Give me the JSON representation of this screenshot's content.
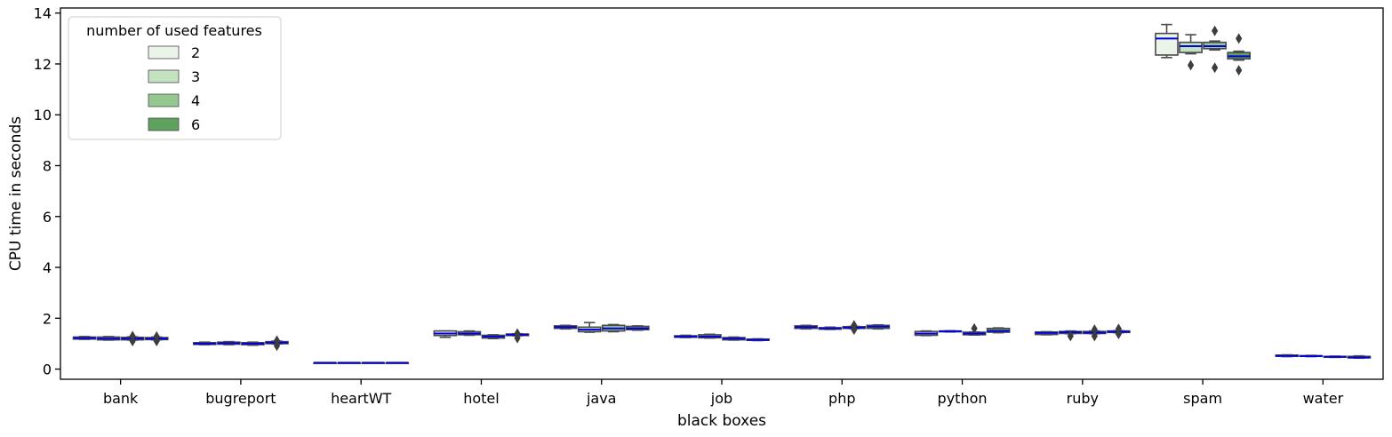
{
  "chart_data": {
    "type": "box",
    "title": "",
    "xlabel": "black boxes",
    "ylabel": "CPU time in seconds",
    "ylim": [
      -0.4,
      14.2
    ],
    "yticks": [
      0,
      2,
      4,
      6,
      8,
      10,
      12,
      14
    ],
    "categories": [
      "bank",
      "bugreport",
      "heartWT",
      "hotel",
      "java",
      "job",
      "php",
      "python",
      "ruby",
      "spam",
      "water"
    ],
    "legend": {
      "title": "number of used features",
      "placement": "top-left",
      "entries": [
        "2",
        "3",
        "4",
        "6"
      ]
    },
    "colors": {
      "series": [
        "#eaf4e8",
        "#c3e2c0",
        "#94c890",
        "#5fa15f"
      ],
      "box_edge": "#4a4a4a",
      "mean_line": "#0000dd"
    },
    "series": [
      {
        "name": "2",
        "boxes": [
          {
            "q1": 1.18,
            "median": 1.22,
            "q3": 1.26,
            "whislo": 1.17,
            "whishi": 1.28,
            "fliers": []
          },
          {
            "q1": 0.97,
            "median": 1.0,
            "q3": 1.04,
            "whislo": 0.96,
            "whishi": 1.06,
            "fliers": []
          },
          {
            "q1": 0.25,
            "median": 0.25,
            "q3": 0.25,
            "whislo": 0.25,
            "whishi": 0.25,
            "fliers": []
          },
          {
            "q1": 1.32,
            "median": 1.4,
            "q3": 1.5,
            "whislo": 1.25,
            "whishi": 1.5,
            "fliers": []
          },
          {
            "q1": 1.6,
            "median": 1.65,
            "q3": 1.7,
            "whislo": 1.58,
            "whishi": 1.72,
            "fliers": []
          },
          {
            "q1": 1.25,
            "median": 1.28,
            "q3": 1.31,
            "whislo": 1.24,
            "whishi": 1.33,
            "fliers": []
          },
          {
            "q1": 1.6,
            "median": 1.65,
            "q3": 1.7,
            "whislo": 1.58,
            "whishi": 1.72,
            "fliers": []
          },
          {
            "q1": 1.33,
            "median": 1.4,
            "q3": 1.48,
            "whislo": 1.32,
            "whishi": 1.5,
            "fliers": []
          },
          {
            "q1": 1.36,
            "median": 1.42,
            "q3": 1.46,
            "whislo": 1.35,
            "whishi": 1.47,
            "fliers": []
          },
          {
            "q1": 12.35,
            "median": 13.0,
            "q3": 13.2,
            "whislo": 12.25,
            "whishi": 13.55,
            "fliers": []
          },
          {
            "q1": 0.5,
            "median": 0.52,
            "q3": 0.55,
            "whislo": 0.49,
            "whishi": 0.56,
            "fliers": []
          }
        ]
      },
      {
        "name": "3",
        "boxes": [
          {
            "q1": 1.15,
            "median": 1.2,
            "q3": 1.26,
            "whislo": 1.14,
            "whishi": 1.28,
            "fliers": []
          },
          {
            "q1": 0.98,
            "median": 1.02,
            "q3": 1.06,
            "whislo": 0.96,
            "whishi": 1.08,
            "fliers": []
          },
          {
            "q1": 0.25,
            "median": 0.25,
            "q3": 0.25,
            "whislo": 0.25,
            "whishi": 0.25,
            "fliers": []
          },
          {
            "q1": 1.35,
            "median": 1.4,
            "q3": 1.47,
            "whislo": 1.33,
            "whishi": 1.5,
            "fliers": []
          },
          {
            "q1": 1.47,
            "median": 1.55,
            "q3": 1.65,
            "whislo": 1.45,
            "whishi": 1.83,
            "fliers": []
          },
          {
            "q1": 1.23,
            "median": 1.28,
            "q3": 1.35,
            "whislo": 1.22,
            "whishi": 1.37,
            "fliers": []
          },
          {
            "q1": 1.57,
            "median": 1.6,
            "q3": 1.63,
            "whislo": 1.56,
            "whishi": 1.65,
            "fliers": []
          },
          {
            "q1": 1.47,
            "median": 1.48,
            "q3": 1.5,
            "whislo": 1.46,
            "whishi": 1.51,
            "fliers": []
          },
          {
            "q1": 1.4,
            "median": 1.45,
            "q3": 1.48,
            "whislo": 1.39,
            "whishi": 1.5,
            "fliers": [
              1.3
            ]
          },
          {
            "q1": 12.45,
            "median": 12.7,
            "q3": 12.85,
            "whislo": 12.4,
            "whishi": 13.15,
            "fliers": [
              11.95
            ]
          },
          {
            "q1": 0.5,
            "median": 0.51,
            "q3": 0.53,
            "whislo": 0.49,
            "whishi": 0.54,
            "fliers": []
          }
        ]
      },
      {
        "name": "4",
        "boxes": [
          {
            "q1": 1.15,
            "median": 1.2,
            "q3": 1.25,
            "whislo": 1.14,
            "whishi": 1.27,
            "fliers": [
              1.1,
              1.3
            ]
          },
          {
            "q1": 0.96,
            "median": 1.0,
            "q3": 1.04,
            "whislo": 0.94,
            "whishi": 1.06,
            "fliers": []
          },
          {
            "q1": 0.25,
            "median": 0.25,
            "q3": 0.25,
            "whislo": 0.25,
            "whishi": 0.25,
            "fliers": []
          },
          {
            "q1": 1.22,
            "median": 1.28,
            "q3": 1.33,
            "whislo": 1.2,
            "whishi": 1.35,
            "fliers": []
          },
          {
            "q1": 1.5,
            "median": 1.6,
            "q3": 1.72,
            "whislo": 1.47,
            "whishi": 1.75,
            "fliers": []
          },
          {
            "q1": 1.15,
            "median": 1.2,
            "q3": 1.24,
            "whislo": 1.14,
            "whishi": 1.26,
            "fliers": []
          },
          {
            "q1": 1.6,
            "median": 1.63,
            "q3": 1.67,
            "whislo": 1.59,
            "whishi": 1.68,
            "fliers": [
              1.55,
              1.72
            ]
          },
          {
            "q1": 1.35,
            "median": 1.4,
            "q3": 1.45,
            "whislo": 1.34,
            "whishi": 1.46,
            "fliers": [
              1.6
            ]
          },
          {
            "q1": 1.4,
            "median": 1.44,
            "q3": 1.48,
            "whislo": 1.39,
            "whishi": 1.5,
            "fliers": [
              1.3,
              1.55
            ]
          },
          {
            "q1": 12.6,
            "median": 12.7,
            "q3": 12.85,
            "whislo": 12.55,
            "whishi": 12.9,
            "fliers": [
              11.85,
              13.3
            ]
          },
          {
            "q1": 0.47,
            "median": 0.48,
            "q3": 0.5,
            "whislo": 0.46,
            "whishi": 0.51,
            "fliers": []
          }
        ]
      },
      {
        "name": "6",
        "boxes": [
          {
            "q1": 1.16,
            "median": 1.2,
            "q3": 1.24,
            "whislo": 1.15,
            "whishi": 1.26,
            "fliers": [
              1.1,
              1.28
            ]
          },
          {
            "q1": 1.0,
            "median": 1.04,
            "q3": 1.08,
            "whislo": 0.99,
            "whishi": 1.1,
            "fliers": [
              0.92,
              1.12
            ]
          },
          {
            "q1": 0.25,
            "median": 0.25,
            "q3": 0.25,
            "whislo": 0.25,
            "whishi": 0.25,
            "fliers": []
          },
          {
            "q1": 1.32,
            "median": 1.35,
            "q3": 1.38,
            "whislo": 1.31,
            "whishi": 1.39,
            "fliers": [
              1.22,
              1.4
            ]
          },
          {
            "q1": 1.55,
            "median": 1.6,
            "q3": 1.68,
            "whislo": 1.53,
            "whishi": 1.7,
            "fliers": []
          },
          {
            "q1": 1.13,
            "median": 1.15,
            "q3": 1.18,
            "whislo": 1.12,
            "whishi": 1.19,
            "fliers": []
          },
          {
            "q1": 1.6,
            "median": 1.67,
            "q3": 1.72,
            "whislo": 1.58,
            "whishi": 1.74,
            "fliers": []
          },
          {
            "q1": 1.45,
            "median": 1.5,
            "q3": 1.6,
            "whislo": 1.43,
            "whishi": 1.62,
            "fliers": []
          },
          {
            "q1": 1.44,
            "median": 1.47,
            "q3": 1.5,
            "whislo": 1.43,
            "whishi": 1.51,
            "fliers": [
              1.38,
              1.58
            ]
          },
          {
            "q1": 12.2,
            "median": 12.3,
            "q3": 12.45,
            "whislo": 12.15,
            "whishi": 12.5,
            "fliers": [
              11.75,
              13.0
            ]
          },
          {
            "q1": 0.44,
            "median": 0.46,
            "q3": 0.5,
            "whislo": 0.43,
            "whishi": 0.52,
            "fliers": []
          }
        ]
      }
    ]
  }
}
